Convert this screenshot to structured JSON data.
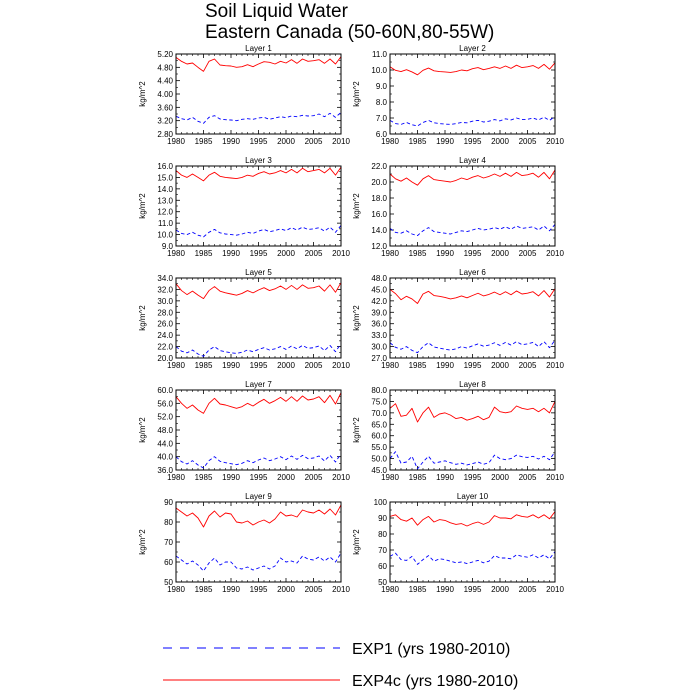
{
  "figure": {
    "title_line1": "Soil Liquid Water",
    "title_line2": "Eastern Canada (50-60N,80-55W)"
  },
  "legend": [
    {
      "label": "EXP1 (yrs 1980-2010)",
      "color": "#0000ff",
      "dash": true
    },
    {
      "label": "EXP4c (yrs 1980-2010)",
      "color": "#ff0000",
      "dash": false
    }
  ],
  "colors": {
    "exp1": "#0000ff",
    "exp4c": "#ff0000",
    "axis": "#000000"
  },
  "chart_data": [
    {
      "type": "line",
      "title": "Layer 1",
      "ylabel": "kg/m^2",
      "xlabel": "",
      "xlim": [
        1980,
        2010
      ],
      "ylim": [
        2.8,
        5.2
      ],
      "x_ticks": [
        "1980",
        "1985",
        "1990",
        "1995",
        "2000",
        "2005",
        "2010"
      ],
      "y_ticks": [
        "2.80",
        "3.20",
        "3.60",
        "4.00",
        "4.40",
        "4.80",
        "5.20"
      ],
      "series": [
        {
          "name": "EXP4c (yrs 1980-2010)",
          "values": [
            5.1,
            4.98,
            4.9,
            4.93,
            4.8,
            4.68,
            4.98,
            5.05,
            4.87,
            4.85,
            4.84,
            4.8,
            4.82,
            4.88,
            4.82,
            4.9,
            4.97,
            4.95,
            4.9,
            4.98,
            4.93,
            5.03,
            4.92,
            5.05,
            4.98,
            5.0,
            5.03,
            4.92,
            5.05,
            4.9,
            5.12
          ]
        },
        {
          "name": "EXP1 (yrs 1980-2010)",
          "values": [
            3.33,
            3.26,
            3.22,
            3.3,
            3.18,
            3.12,
            3.3,
            3.35,
            3.25,
            3.23,
            3.22,
            3.2,
            3.24,
            3.26,
            3.24,
            3.28,
            3.3,
            3.24,
            3.28,
            3.32,
            3.29,
            3.34,
            3.32,
            3.36,
            3.34,
            3.35,
            3.4,
            3.32,
            3.42,
            3.3,
            3.45
          ]
        }
      ]
    },
    {
      "type": "line",
      "title": "Layer 2",
      "ylabel": "kg/m^2",
      "xlabel": "",
      "xlim": [
        1980,
        2010
      ],
      "ylim": [
        6.0,
        11.0
      ],
      "x_ticks": [
        "1980",
        "1985",
        "1990",
        "1995",
        "2000",
        "2005",
        "2010"
      ],
      "y_ticks": [
        "6.0",
        "7.0",
        "8.0",
        "9.0",
        "10.0",
        "11.0"
      ],
      "series": [
        {
          "name": "EXP4c (yrs 1980-2010)",
          "values": [
            10.2,
            9.98,
            9.9,
            10.02,
            9.88,
            9.7,
            9.98,
            10.12,
            9.95,
            9.9,
            9.88,
            9.85,
            9.9,
            10.0,
            9.95,
            10.08,
            10.15,
            10.02,
            10.1,
            10.2,
            10.1,
            10.25,
            10.1,
            10.3,
            10.15,
            10.2,
            10.28,
            10.1,
            10.35,
            10.05,
            10.45
          ]
        },
        {
          "name": "EXP1 (yrs 1980-2010)",
          "values": [
            6.85,
            6.65,
            6.6,
            6.72,
            6.58,
            6.5,
            6.72,
            6.85,
            6.7,
            6.65,
            6.62,
            6.6,
            6.65,
            6.72,
            6.7,
            6.8,
            6.85,
            6.75,
            6.8,
            6.9,
            6.82,
            6.95,
            6.88,
            7.0,
            6.9,
            6.92,
            7.0,
            6.88,
            7.05,
            6.85,
            7.1
          ]
        }
      ]
    },
    {
      "type": "line",
      "title": "Layer 3",
      "ylabel": "kg/m^2",
      "xlabel": "",
      "xlim": [
        1980,
        2010
      ],
      "ylim": [
        9.0,
        16.0
      ],
      "x_ticks": [
        "1980",
        "1985",
        "1990",
        "1995",
        "2000",
        "2005",
        "2010"
      ],
      "y_ticks": [
        "9.0",
        "10.0",
        "11.0",
        "12.0",
        "13.0",
        "14.0",
        "15.0",
        "16.0"
      ],
      "series": [
        {
          "name": "EXP4c (yrs 1980-2010)",
          "values": [
            15.6,
            15.2,
            15.0,
            15.3,
            15.0,
            14.7,
            15.2,
            15.45,
            15.1,
            15.0,
            14.95,
            14.9,
            15.0,
            15.2,
            15.1,
            15.35,
            15.5,
            15.3,
            15.4,
            15.6,
            15.4,
            15.7,
            15.4,
            15.8,
            15.5,
            15.6,
            15.7,
            15.4,
            15.8,
            15.2,
            15.9
          ]
        },
        {
          "name": "EXP1 (yrs 1980-2010)",
          "values": [
            10.4,
            10.1,
            10.0,
            10.2,
            9.95,
            9.8,
            10.2,
            10.45,
            10.15,
            10.05,
            10.0,
            9.95,
            10.05,
            10.2,
            10.1,
            10.3,
            10.45,
            10.25,
            10.35,
            10.5,
            10.35,
            10.6,
            10.4,
            10.65,
            10.45,
            10.5,
            10.6,
            10.3,
            10.65,
            10.2,
            10.8
          ]
        }
      ]
    },
    {
      "type": "line",
      "title": "Layer 4",
      "ylabel": "kg/m^2",
      "xlabel": "",
      "xlim": [
        1980,
        2010
      ],
      "ylim": [
        12.0,
        22.0
      ],
      "x_ticks": [
        "1980",
        "1985",
        "1990",
        "1995",
        "2000",
        "2005",
        "2010"
      ],
      "y_ticks": [
        "12.0",
        "14.0",
        "16.0",
        "18.0",
        "20.0",
        "22.0"
      ],
      "series": [
        {
          "name": "EXP4c (yrs 1980-2010)",
          "values": [
            21.0,
            20.4,
            20.1,
            20.5,
            20.0,
            19.6,
            20.4,
            20.8,
            20.3,
            20.2,
            20.1,
            20.0,
            20.2,
            20.5,
            20.3,
            20.6,
            20.8,
            20.5,
            20.7,
            21.0,
            20.7,
            21.1,
            20.7,
            21.2,
            20.8,
            20.9,
            21.1,
            20.6,
            21.2,
            20.4,
            21.5
          ]
        },
        {
          "name": "EXP1 (yrs 1980-2010)",
          "values": [
            14.2,
            13.7,
            13.6,
            13.9,
            13.5,
            13.3,
            13.9,
            14.3,
            13.8,
            13.7,
            13.6,
            13.5,
            13.7,
            13.9,
            13.8,
            14.0,
            14.2,
            14.0,
            14.1,
            14.3,
            14.1,
            14.4,
            14.1,
            14.5,
            14.2,
            14.3,
            14.4,
            14.0,
            14.5,
            13.9,
            14.7
          ]
        }
      ]
    },
    {
      "type": "line",
      "title": "Layer 5",
      "ylabel": "kg/m^2",
      "xlabel": "",
      "xlim": [
        1980,
        2010
      ],
      "ylim": [
        20.0,
        34.0
      ],
      "x_ticks": [
        "1980",
        "1985",
        "1990",
        "1995",
        "2000",
        "2005",
        "2010"
      ],
      "y_ticks": [
        "20.0",
        "22.0",
        "24.0",
        "26.0",
        "28.0",
        "30.0",
        "32.0",
        "34.0"
      ],
      "series": [
        {
          "name": "EXP4c (yrs 1980-2010)",
          "values": [
            33.0,
            31.8,
            31.1,
            31.7,
            31.0,
            30.4,
            31.8,
            32.5,
            31.7,
            31.4,
            31.2,
            31.0,
            31.3,
            31.8,
            31.4,
            31.9,
            32.3,
            31.8,
            32.1,
            32.6,
            32.0,
            32.7,
            32.0,
            32.8,
            32.2,
            32.3,
            32.6,
            31.7,
            32.8,
            31.5,
            33.2
          ]
        },
        {
          "name": "EXP1 (yrs 1980-2010)",
          "values": [
            22.0,
            21.2,
            20.9,
            21.4,
            20.7,
            20.3,
            21.4,
            22.0,
            21.3,
            21.1,
            20.9,
            20.8,
            21.0,
            21.4,
            21.1,
            21.5,
            21.8,
            21.4,
            21.6,
            22.0,
            21.5,
            22.1,
            21.6,
            22.2,
            21.7,
            21.8,
            22.1,
            21.3,
            22.2,
            21.1,
            22.5
          ]
        }
      ]
    },
    {
      "type": "line",
      "title": "Layer 6",
      "ylabel": "kg/m^2",
      "xlabel": "",
      "xlim": [
        1980,
        2010
      ],
      "ylim": [
        27.0,
        48.0
      ],
      "x_ticks": [
        "1980",
        "1985",
        "1990",
        "1995",
        "2000",
        "2005",
        "2010"
      ],
      "y_ticks": [
        "27.0",
        "30.0",
        "33.0",
        "36.0",
        "39.0",
        "42.0",
        "45.0",
        "48.0"
      ],
      "series": [
        {
          "name": "EXP4c (yrs 1980-2010)",
          "values": [
            45.0,
            43.9,
            42.3,
            43.2,
            42.5,
            41.3,
            43.8,
            44.5,
            43.4,
            43.2,
            42.9,
            42.5,
            42.8,
            43.3,
            42.8,
            43.4,
            44.0,
            43.3,
            43.7,
            44.3,
            43.6,
            44.4,
            43.6,
            44.6,
            43.8,
            44.0,
            44.4,
            43.3,
            44.7,
            43.0,
            45.2
          ]
        },
        {
          "name": "EXP1 (yrs 1980-2010)",
          "values": [
            31.0,
            29.8,
            29.3,
            30.0,
            29.0,
            28.4,
            30.0,
            31.0,
            29.9,
            29.6,
            29.3,
            29.1,
            29.4,
            30.0,
            29.6,
            30.2,
            30.7,
            30.1,
            30.4,
            31.0,
            30.3,
            31.1,
            30.4,
            31.3,
            30.5,
            30.7,
            31.1,
            30.0,
            31.3,
            29.7,
            31.7
          ]
        }
      ]
    },
    {
      "type": "line",
      "title": "Layer 7",
      "ylabel": "kg/m^2",
      "xlabel": "",
      "xlim": [
        1980,
        2010
      ],
      "ylim": [
        36.0,
        60.0
      ],
      "x_ticks": [
        "1980",
        "1985",
        "1990",
        "1995",
        "2000",
        "2005",
        "2010"
      ],
      "y_ticks": [
        "36.0",
        "40.0",
        "44.0",
        "48.0",
        "52.0",
        "56.0",
        "60.0"
      ],
      "series": [
        {
          "name": "EXP4c (yrs 1980-2010)",
          "values": [
            58.0,
            56.0,
            54.5,
            55.5,
            54.0,
            53.0,
            56.0,
            57.5,
            55.8,
            55.5,
            55.0,
            54.5,
            55.0,
            56.0,
            55.2,
            56.3,
            57.2,
            56.0,
            56.8,
            57.8,
            56.6,
            58.0,
            56.6,
            58.2,
            57.0,
            57.3,
            58.0,
            56.2,
            58.4,
            55.8,
            59.2
          ]
        },
        {
          "name": "EXP1 (yrs 1980-2010)",
          "values": [
            40.0,
            38.5,
            37.8,
            38.8,
            37.5,
            36.6,
            38.8,
            40.0,
            38.6,
            38.2,
            37.9,
            37.6,
            38.0,
            38.8,
            38.2,
            39.0,
            39.6,
            38.8,
            39.3,
            40.0,
            39.1,
            40.2,
            39.2,
            40.4,
            39.4,
            39.6,
            40.2,
            38.7,
            40.4,
            38.4,
            40.9
          ]
        }
      ]
    },
    {
      "type": "line",
      "title": "Layer 8",
      "ylabel": "kg/m^2",
      "xlabel": "",
      "xlim": [
        1980,
        2010
      ],
      "ylim": [
        45.0,
        80.0
      ],
      "x_ticks": [
        "1980",
        "1985",
        "1990",
        "1995",
        "2000",
        "2005",
        "2010"
      ],
      "y_ticks": [
        "45.0",
        "50.0",
        "55.0",
        "60.0",
        "65.0",
        "70.0",
        "75.0",
        "80.0"
      ],
      "series": [
        {
          "name": "EXP4c (yrs 1980-2010)",
          "values": [
            72.0,
            74.0,
            68.5,
            69.0,
            72.0,
            66.0,
            70.0,
            72.5,
            68.0,
            69.5,
            70.0,
            69.0,
            67.5,
            68.0,
            66.8,
            67.5,
            68.5,
            67.0,
            68.0,
            72.5,
            70.5,
            70.0,
            70.5,
            73.0,
            72.0,
            71.5,
            72.0,
            70.5,
            72.0,
            70.0,
            75.0
          ]
        },
        {
          "name": "EXP1 (yrs 1980-2010)",
          "values": [
            50.0,
            53.0,
            48.0,
            48.5,
            51.0,
            45.5,
            48.5,
            51.0,
            48.0,
            48.5,
            49.0,
            48.2,
            47.5,
            48.0,
            47.2,
            47.8,
            48.5,
            47.5,
            48.2,
            51.5,
            50.0,
            49.5,
            50.0,
            51.5,
            50.8,
            50.5,
            51.0,
            49.8,
            51.0,
            49.5,
            53.0
          ]
        }
      ]
    },
    {
      "type": "line",
      "title": "Layer 9",
      "ylabel": "kg/m^2",
      "xlabel": "",
      "xlim": [
        1980,
        2010
      ],
      "ylim": [
        50,
        90
      ],
      "x_ticks": [
        "1980",
        "1985",
        "1990",
        "1995",
        "2000",
        "2005",
        "2010"
      ],
      "y_ticks": [
        "50",
        "60",
        "70",
        "80",
        "90"
      ],
      "series": [
        {
          "name": "EXP4c (yrs 1980-2010)",
          "values": [
            87.0,
            85.0,
            83.0,
            84.5,
            82.0,
            77.5,
            83.0,
            85.5,
            82.5,
            84.5,
            84.0,
            80.0,
            79.5,
            80.5,
            78.5,
            80.0,
            81.0,
            79.5,
            81.5,
            85.0,
            83.0,
            83.5,
            82.5,
            86.0,
            85.0,
            84.5,
            86.0,
            84.0,
            86.5,
            83.5,
            88.5
          ]
        },
        {
          "name": "EXP1 (yrs 1980-2010)",
          "values": [
            63.0,
            61.0,
            59.0,
            60.5,
            58.5,
            55.5,
            59.5,
            62.0,
            58.5,
            60.0,
            60.0,
            57.0,
            56.5,
            57.5,
            56.0,
            57.0,
            58.0,
            56.5,
            58.0,
            62.0,
            60.0,
            60.5,
            59.5,
            63.0,
            61.5,
            61.0,
            62.5,
            60.5,
            62.5,
            60.0,
            64.5
          ]
        }
      ]
    },
    {
      "type": "line",
      "title": "Layer 10",
      "ylabel": "kg/m^2",
      "xlabel": "",
      "xlim": [
        1980,
        2010
      ],
      "ylim": [
        50,
        100
      ],
      "x_ticks": [
        "1980",
        "1985",
        "1990",
        "1995",
        "2000",
        "2005",
        "2010"
      ],
      "y_ticks": [
        "50",
        "60",
        "70",
        "80",
        "90",
        "100"
      ],
      "series": [
        {
          "name": "EXP4c (yrs 1980-2010)",
          "values": [
            91.0,
            92.0,
            89.0,
            88.0,
            90.0,
            85.5,
            89.0,
            91.0,
            87.5,
            89.0,
            88.5,
            87.0,
            86.0,
            86.5,
            85.0,
            86.5,
            87.5,
            86.0,
            87.5,
            91.5,
            90.0,
            90.0,
            89.5,
            92.0,
            91.0,
            90.5,
            92.0,
            90.0,
            92.0,
            89.5,
            94.0
          ]
        },
        {
          "name": "EXP1 (yrs 1980-2010)",
          "values": [
            66.0,
            68.0,
            64.0,
            63.5,
            66.0,
            61.0,
            64.0,
            66.5,
            63.0,
            64.5,
            64.0,
            63.0,
            62.0,
            62.5,
            61.5,
            62.5,
            63.5,
            62.0,
            63.0,
            66.5,
            65.0,
            65.0,
            64.5,
            67.0,
            66.0,
            65.5,
            67.0,
            65.0,
            67.0,
            64.5,
            69.0
          ]
        }
      ]
    }
  ]
}
